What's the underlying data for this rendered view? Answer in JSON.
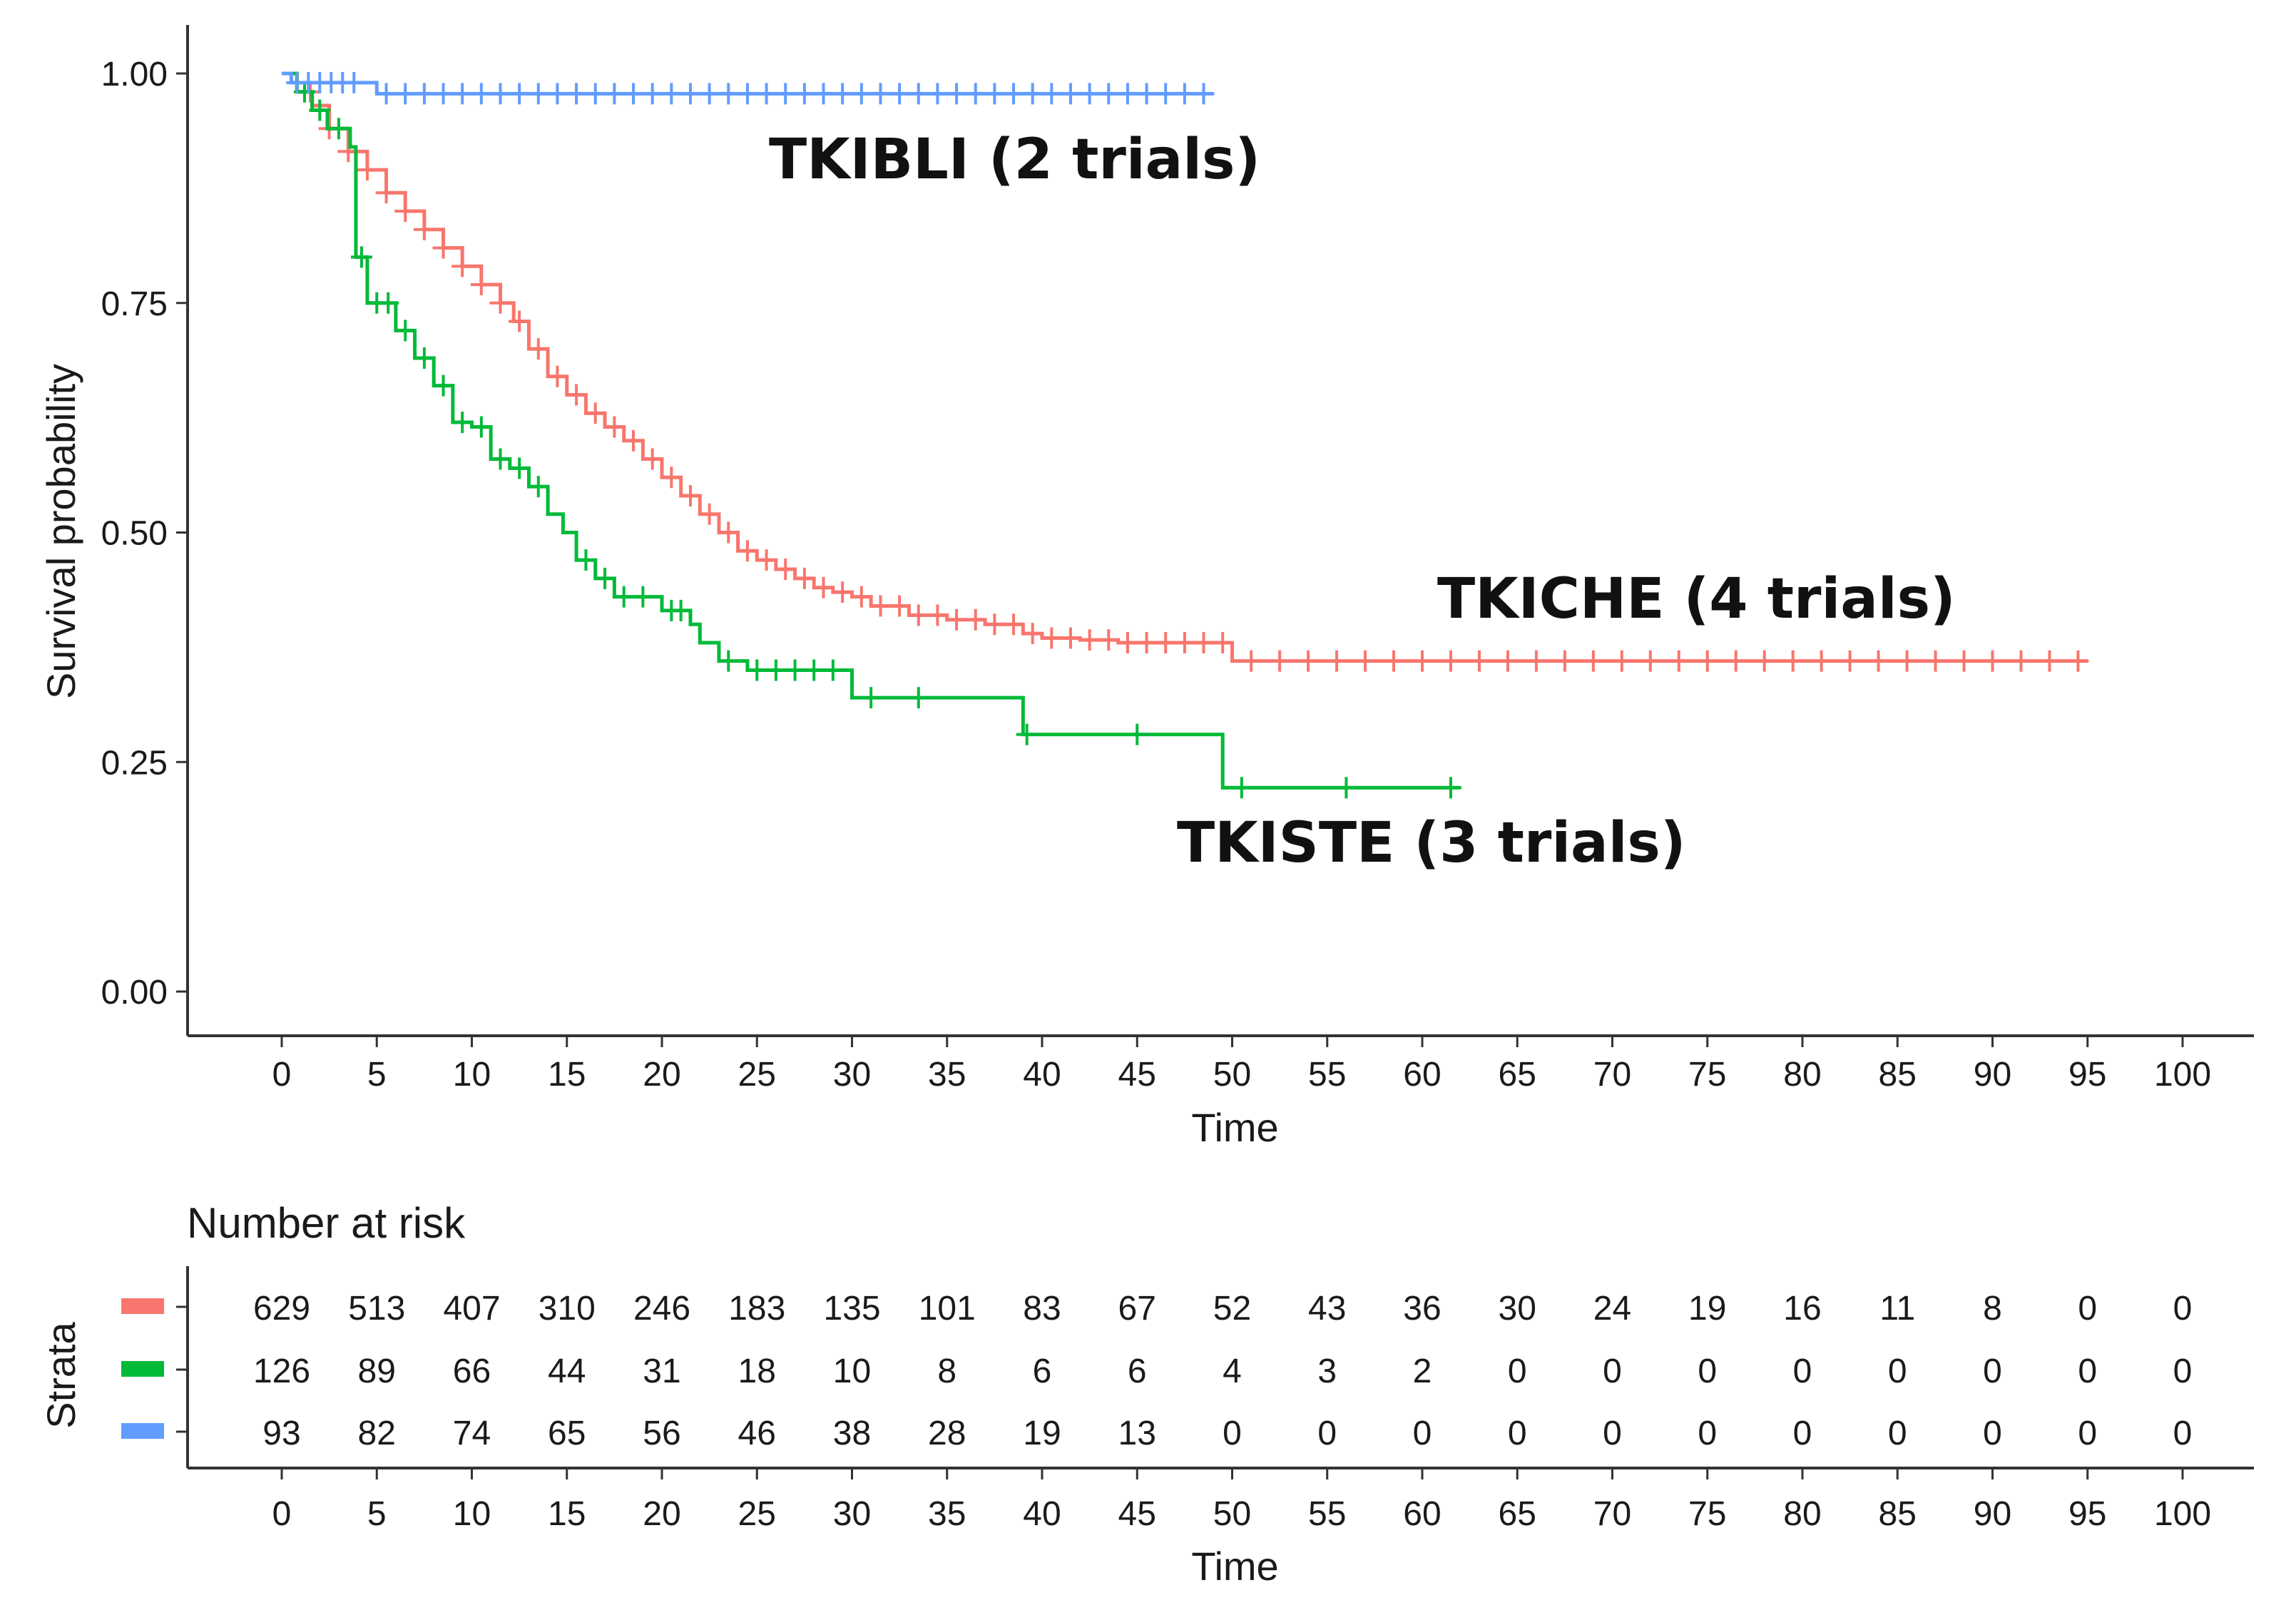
{
  "chart_data": [
    {
      "type": "line",
      "subtype": "kaplan-meier",
      "title": "",
      "xlabel": "Time",
      "ylabel": "Survival probability",
      "xlim": [
        0,
        100
      ],
      "ylim": [
        0,
        1
      ],
      "x_ticks": [
        "0",
        "5",
        "10",
        "15",
        "20",
        "25",
        "30",
        "35",
        "40",
        "45",
        "50",
        "55",
        "60",
        "65",
        "70",
        "75",
        "80",
        "85",
        "90",
        "95",
        "100"
      ],
      "y_ticks": [
        "0.00",
        "0.25",
        "0.50",
        "0.75",
        "1.00"
      ],
      "grid": false,
      "legend": "none",
      "series": [
        {
          "name": "TKICHE (4 trials)",
          "color": "#F8766D",
          "steps": [
            [
              0,
              1.0
            ],
            [
              0.8,
              0.98
            ],
            [
              1.6,
              0.965
            ],
            [
              2.5,
              0.94
            ],
            [
              3.5,
              0.915
            ],
            [
              4.5,
              0.895
            ],
            [
              5.5,
              0.87
            ],
            [
              6.5,
              0.85
            ],
            [
              7.5,
              0.83
            ],
            [
              8.5,
              0.81
            ],
            [
              9.5,
              0.79
            ],
            [
              10.5,
              0.77
            ],
            [
              11.5,
              0.75
            ],
            [
              12.2,
              0.73
            ],
            [
              13,
              0.7
            ],
            [
              14,
              0.67
            ],
            [
              15,
              0.65
            ],
            [
              16,
              0.63
            ],
            [
              17,
              0.615
            ],
            [
              18,
              0.6
            ],
            [
              19,
              0.58
            ],
            [
              20,
              0.56
            ],
            [
              21,
              0.54
            ],
            [
              22,
              0.52
            ],
            [
              23,
              0.5
            ],
            [
              24,
              0.48
            ],
            [
              25,
              0.47
            ],
            [
              26,
              0.46
            ],
            [
              27,
              0.45
            ],
            [
              28,
              0.44
            ],
            [
              29,
              0.435
            ],
            [
              30,
              0.43
            ],
            [
              31,
              0.42
            ],
            [
              33,
              0.41
            ],
            [
              35,
              0.405
            ],
            [
              37,
              0.4
            ],
            [
              39,
              0.39
            ],
            [
              40,
              0.385
            ],
            [
              42,
              0.383
            ],
            [
              44,
              0.38
            ],
            [
              48,
              0.38
            ],
            [
              50,
              0.36
            ],
            [
              95,
              0.36
            ]
          ],
          "censors": [
            1.5,
            2.5,
            3.5,
            4.5,
            5.5,
            6.5,
            7.5,
            8.5,
            9.5,
            10.5,
            11.5,
            12.5,
            13.5,
            14.5,
            15.5,
            16.5,
            17.5,
            18.5,
            19.5,
            20.5,
            21.5,
            22.5,
            23.5,
            24.5,
            25.5,
            26.5,
            27.5,
            28.5,
            29.5,
            30.5,
            31.5,
            32.5,
            33.5,
            34.5,
            35.5,
            36.5,
            37.5,
            38.5,
            39.5,
            40.5,
            41.5,
            42.5,
            43.5,
            44.5,
            45.5,
            46.5,
            47.5,
            48.5,
            49.5,
            51,
            52.5,
            54,
            55.5,
            57,
            58.5,
            60,
            61.5,
            63,
            64.5,
            66,
            67.5,
            69,
            70.5,
            72,
            73.5,
            75,
            76.5,
            78,
            79.5,
            81,
            82.5,
            84,
            85.5,
            87,
            88.5,
            90,
            91.5,
            93,
            94.5
          ]
        },
        {
          "name": "TKISTE (3 trials)",
          "color": "#00BA38",
          "steps": [
            [
              0,
              1.0
            ],
            [
              0.8,
              0.98
            ],
            [
              1.6,
              0.96
            ],
            [
              2.4,
              0.94
            ],
            [
              3.6,
              0.92
            ],
            [
              3.9,
              0.8
            ],
            [
              4.5,
              0.75
            ],
            [
              6,
              0.72
            ],
            [
              7,
              0.69
            ],
            [
              8,
              0.66
            ],
            [
              9,
              0.62
            ],
            [
              10,
              0.615
            ],
            [
              11,
              0.58
            ],
            [
              12,
              0.57
            ],
            [
              13,
              0.55
            ],
            [
              14,
              0.52
            ],
            [
              14.8,
              0.5
            ],
            [
              15.5,
              0.47
            ],
            [
              16.5,
              0.45
            ],
            [
              17.5,
              0.43
            ],
            [
              20,
              0.415
            ],
            [
              21.5,
              0.4
            ],
            [
              22,
              0.38
            ],
            [
              23,
              0.36
            ],
            [
              24.5,
              0.35
            ],
            [
              30,
              0.32
            ],
            [
              39,
              0.28
            ],
            [
              49.5,
              0.222
            ],
            [
              62,
              0.222
            ]
          ],
          "censors": [
            1.2,
            2,
            3,
            4.2,
            5,
            5.6,
            6.5,
            7.5,
            8.5,
            9.5,
            10.5,
            11.5,
            12.5,
            13.5,
            16,
            17,
            18,
            19,
            20.5,
            21,
            23.5,
            25,
            26,
            27,
            28,
            29,
            31,
            33.5,
            39.2,
            45,
            50.5,
            56,
            61.5
          ]
        },
        {
          "name": "TKIBLI (2 trials)",
          "color": "#619CFF",
          "steps": [
            [
              0,
              1.0
            ],
            [
              0.5,
              0.99
            ],
            [
              4,
              0.99
            ],
            [
              5,
              0.978
            ],
            [
              49,
              0.978
            ]
          ],
          "censors": [
            0.8,
            1.4,
            2,
            2.6,
            3.2,
            3.8,
            5.5,
            6.5,
            7.5,
            8.5,
            9.5,
            10.5,
            11.5,
            12.5,
            13.5,
            14.5,
            15.5,
            16.5,
            17.5,
            18.5,
            19.5,
            20.5,
            21.5,
            22.5,
            23.5,
            24.5,
            25.5,
            26.5,
            27.5,
            28.5,
            29.5,
            30.5,
            31.5,
            32.5,
            33.5,
            34.5,
            35.5,
            36.5,
            37.5,
            38.5,
            39.5,
            40.5,
            41.5,
            42.5,
            43.5,
            44.5,
            45.5,
            46.5,
            47.5,
            48.5
          ]
        }
      ],
      "labels": [
        "TKIBLI (2 trials)",
        "TKICHE (4 trials)",
        "TKISTE (3 trials)"
      ]
    },
    {
      "type": "table",
      "title": "Number at risk",
      "ylabel": "Strata",
      "xlabel": "Time",
      "columns": [
        "0",
        "5",
        "10",
        "15",
        "20",
        "25",
        "30",
        "35",
        "40",
        "45",
        "50",
        "55",
        "60",
        "65",
        "70",
        "75",
        "80",
        "85",
        "90",
        "95",
        "100"
      ],
      "rows": [
        {
          "color": "#F8766D",
          "values": [
            "629",
            "513",
            "407",
            "310",
            "246",
            "183",
            "135",
            "101",
            "83",
            "67",
            "52",
            "43",
            "36",
            "30",
            "24",
            "19",
            "16",
            "11",
            "8",
            "0",
            "0"
          ]
        },
        {
          "color": "#00BA38",
          "values": [
            "126",
            "89",
            "66",
            "44",
            "31",
            "18",
            "10",
            "8",
            "6",
            "6",
            "4",
            "3",
            "2",
            "0",
            "0",
            "0",
            "0",
            "0",
            "0",
            "0",
            "0"
          ]
        },
        {
          "color": "#619CFF",
          "values": [
            "93",
            "82",
            "74",
            "65",
            "56",
            "46",
            "38",
            "28",
            "19",
            "13",
            "0",
            "0",
            "0",
            "0",
            "0",
            "0",
            "0",
            "0",
            "0",
            "0",
            "0"
          ]
        }
      ]
    }
  ]
}
